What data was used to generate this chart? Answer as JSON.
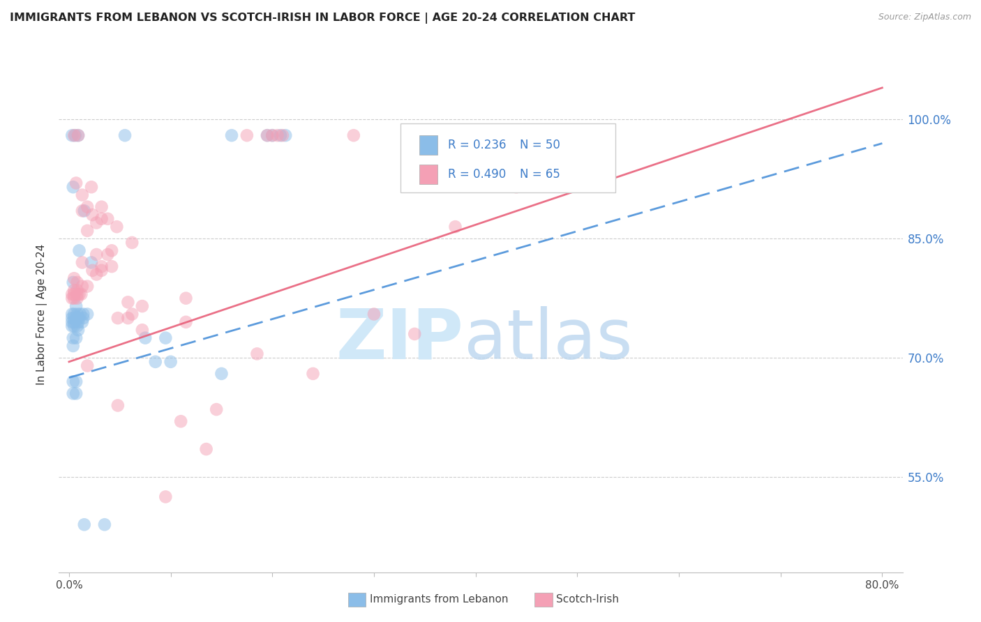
{
  "title": "IMMIGRANTS FROM LEBANON VS SCOTCH-IRISH IN LABOR FORCE | AGE 20-24 CORRELATION CHART",
  "source": "Source: ZipAtlas.com",
  "ylabel": "In Labor Force | Age 20-24",
  "x_tick_labels": [
    "0.0%",
    "",
    "",
    "",
    "",
    "",
    "",
    "",
    "80.0%"
  ],
  "x_tick_vals": [
    0,
    10,
    20,
    30,
    40,
    50,
    60,
    70,
    80
  ],
  "y_tick_labels": [
    "55.0%",
    "70.0%",
    "85.0%",
    "100.0%"
  ],
  "y_tick_vals": [
    55,
    70,
    85,
    100
  ],
  "xlim": [
    -1,
    82
  ],
  "ylim": [
    43,
    108
  ],
  "blue_color": "#8bbde8",
  "pink_color": "#f4a0b5",
  "blue_line_color": "#4a90d9",
  "pink_line_color": "#e8607a",
  "blue_line_x0": 0,
  "blue_line_y0": 67.5,
  "blue_line_x1": 80,
  "blue_line_y1": 97.0,
  "pink_line_x0": 0,
  "pink_line_y0": 69.5,
  "pink_line_x1": 80,
  "pink_line_y1": 104.0,
  "blue_scatter": [
    [
      0.3,
      98.0
    ],
    [
      0.6,
      98.0
    ],
    [
      0.9,
      98.0
    ],
    [
      5.5,
      98.0
    ],
    [
      16.0,
      98.0
    ],
    [
      19.5,
      98.0
    ],
    [
      20.0,
      98.0
    ],
    [
      20.8,
      98.0
    ],
    [
      21.3,
      98.0
    ],
    [
      0.4,
      91.5
    ],
    [
      1.5,
      88.5
    ],
    [
      1.0,
      83.5
    ],
    [
      2.2,
      82.0
    ],
    [
      0.4,
      79.5
    ],
    [
      0.7,
      76.5
    ],
    [
      0.3,
      75.5
    ],
    [
      0.5,
      75.5
    ],
    [
      0.8,
      75.5
    ],
    [
      1.1,
      75.5
    ],
    [
      1.4,
      75.5
    ],
    [
      1.8,
      75.5
    ],
    [
      0.3,
      75.0
    ],
    [
      0.5,
      75.0
    ],
    [
      0.8,
      75.0
    ],
    [
      1.0,
      75.0
    ],
    [
      1.4,
      75.0
    ],
    [
      0.3,
      74.5
    ],
    [
      0.5,
      74.5
    ],
    [
      0.9,
      74.5
    ],
    [
      1.3,
      74.5
    ],
    [
      0.3,
      74.0
    ],
    [
      0.5,
      74.0
    ],
    [
      0.8,
      74.0
    ],
    [
      0.9,
      73.5
    ],
    [
      0.4,
      72.5
    ],
    [
      0.7,
      72.5
    ],
    [
      0.4,
      71.5
    ],
    [
      7.5,
      72.5
    ],
    [
      9.5,
      72.5
    ],
    [
      8.5,
      69.5
    ],
    [
      10.0,
      69.5
    ],
    [
      15.0,
      68.0
    ],
    [
      0.4,
      67.0
    ],
    [
      0.7,
      67.0
    ],
    [
      0.4,
      65.5
    ],
    [
      0.7,
      65.5
    ],
    [
      1.5,
      49.0
    ],
    [
      3.5,
      49.0
    ]
  ],
  "pink_scatter": [
    [
      0.5,
      98.0
    ],
    [
      0.9,
      98.0
    ],
    [
      17.5,
      98.0
    ],
    [
      19.5,
      98.0
    ],
    [
      20.0,
      98.0
    ],
    [
      20.5,
      98.0
    ],
    [
      21.0,
      98.0
    ],
    [
      28.0,
      98.0
    ],
    [
      0.7,
      92.0
    ],
    [
      2.2,
      91.5
    ],
    [
      1.3,
      90.5
    ],
    [
      1.8,
      89.0
    ],
    [
      3.2,
      89.0
    ],
    [
      1.3,
      88.5
    ],
    [
      2.3,
      88.0
    ],
    [
      3.2,
      87.5
    ],
    [
      3.8,
      87.5
    ],
    [
      2.7,
      87.0
    ],
    [
      4.7,
      86.5
    ],
    [
      1.8,
      86.0
    ],
    [
      6.2,
      84.5
    ],
    [
      4.2,
      83.5
    ],
    [
      2.7,
      83.0
    ],
    [
      3.8,
      83.0
    ],
    [
      1.3,
      82.0
    ],
    [
      3.2,
      81.5
    ],
    [
      4.2,
      81.5
    ],
    [
      2.3,
      81.0
    ],
    [
      3.2,
      81.0
    ],
    [
      2.7,
      80.5
    ],
    [
      0.5,
      80.0
    ],
    [
      0.8,
      79.5
    ],
    [
      1.3,
      79.0
    ],
    [
      1.8,
      79.0
    ],
    [
      0.5,
      78.5
    ],
    [
      0.8,
      78.5
    ],
    [
      0.3,
      78.0
    ],
    [
      0.5,
      78.0
    ],
    [
      0.8,
      78.0
    ],
    [
      1.0,
      78.0
    ],
    [
      1.2,
      78.0
    ],
    [
      0.3,
      77.5
    ],
    [
      0.5,
      77.5
    ],
    [
      0.8,
      77.5
    ],
    [
      11.5,
      77.5
    ],
    [
      5.8,
      77.0
    ],
    [
      7.2,
      76.5
    ],
    [
      6.2,
      75.5
    ],
    [
      4.8,
      75.0
    ],
    [
      5.8,
      75.0
    ],
    [
      11.5,
      74.5
    ],
    [
      7.2,
      73.5
    ],
    [
      18.5,
      70.5
    ],
    [
      1.8,
      69.0
    ],
    [
      24.0,
      68.0
    ],
    [
      4.8,
      64.0
    ],
    [
      14.5,
      63.5
    ],
    [
      11.0,
      62.0
    ],
    [
      13.5,
      58.5
    ],
    [
      9.5,
      52.5
    ],
    [
      44.0,
      91.5
    ],
    [
      38.0,
      86.5
    ],
    [
      30.0,
      75.5
    ],
    [
      34.0,
      73.0
    ]
  ]
}
